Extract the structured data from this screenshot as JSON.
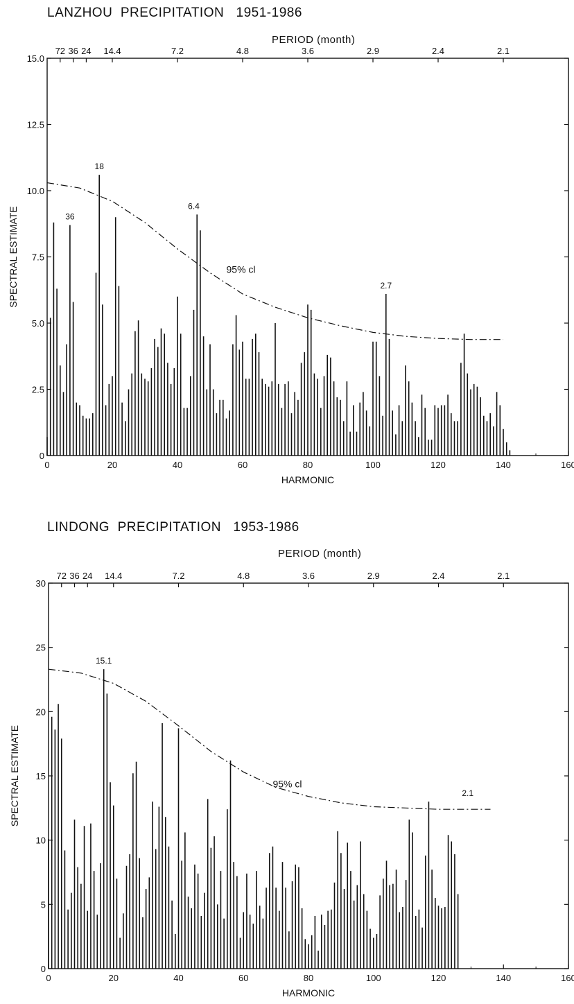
{
  "chart_data": [
    {
      "type": "bar",
      "title": "LANZHOU  PRECIPITATION   1951-1986",
      "xlabel": "HARMONIC",
      "ylabel": "SPECTRAL ESTIMATE",
      "top_axis_label": "PERIOD (month)",
      "xlim": [
        0,
        160
      ],
      "ylim": [
        0,
        15
      ],
      "x_ticks": [
        0,
        20,
        40,
        60,
        80,
        100,
        120,
        140,
        160
      ],
      "y_ticks": [
        0,
        2.5,
        5.0,
        7.5,
        10.0,
        12.5,
        15.0
      ],
      "y_tick_labels": [
        "0",
        "2.5",
        "5.0",
        "7.5",
        "10.0",
        "12.5",
        "15.0"
      ],
      "top_ticks": [
        {
          "label": "72",
          "harmonic": 2
        },
        {
          "label": "36",
          "harmonic": 4
        },
        {
          "label": "24",
          "harmonic": 6
        },
        {
          "label": "14.4",
          "harmonic": 10
        },
        {
          "label": "7.2",
          "harmonic": 20
        },
        {
          "label": "4.8",
          "harmonic": 30
        },
        {
          "label": "3.6",
          "harmonic": 40
        },
        {
          "label": "2.9",
          "harmonic": 50
        },
        {
          "label": "2.4",
          "harmonic": 60
        },
        {
          "label": "2.1",
          "harmonic": 70
        }
      ],
      "x": [
        0,
        1,
        2,
        3,
        4,
        5,
        6,
        7,
        8,
        9,
        10,
        11,
        12,
        13,
        14,
        15,
        16,
        17,
        18,
        19,
        20,
        21,
        22,
        23,
        24,
        25,
        26,
        27,
        28,
        29,
        30,
        31,
        32,
        33,
        34,
        35,
        36,
        37,
        38,
        39,
        40,
        41,
        42,
        43,
        44,
        45,
        46,
        47,
        48,
        49,
        50,
        51,
        52,
        53,
        54,
        55,
        56,
        57,
        58,
        59,
        60,
        61,
        62,
        63,
        64,
        65,
        66,
        67,
        68,
        69,
        70,
        71,
        72,
        73,
        74,
        75,
        76,
        77,
        78,
        79,
        80,
        81,
        82,
        83,
        84,
        85,
        86,
        87,
        88,
        89,
        90,
        91,
        92,
        93,
        94,
        95,
        96,
        97,
        98,
        99,
        100,
        101,
        102,
        103,
        104,
        105,
        106,
        107,
        108,
        109,
        110,
        111,
        112,
        113,
        114,
        115,
        116,
        117,
        118,
        119,
        120,
        121,
        122,
        123,
        124,
        125,
        126,
        127,
        128,
        129,
        130,
        131,
        132,
        133,
        134,
        135,
        136,
        137,
        138,
        139,
        140,
        141,
        142,
        143,
        144
      ],
      "values": [
        0.7,
        5.2,
        8.8,
        6.3,
        3.4,
        2.4,
        4.2,
        8.7,
        5.8,
        2.0,
        1.9,
        1.5,
        1.4,
        1.4,
        1.6,
        6.9,
        10.6,
        5.7,
        1.9,
        2.7,
        3.0,
        9.0,
        6.4,
        2.0,
        1.3,
        2.5,
        3.1,
        4.7,
        5.1,
        3.1,
        2.9,
        2.8,
        3.3,
        4.4,
        4.1,
        4.8,
        4.6,
        3.5,
        2.7,
        3.3,
        6.0,
        4.6,
        1.8,
        1.8,
        3.0,
        5.5,
        9.1,
        8.5,
        4.5,
        2.5,
        4.2,
        2.5,
        1.6,
        2.1,
        2.1,
        1.4,
        1.7,
        4.2,
        5.3,
        4.0,
        4.3,
        2.9,
        2.9,
        4.4,
        4.6,
        3.9,
        2.9,
        2.7,
        2.6,
        2.8,
        5.0,
        2.7,
        1.8,
        2.7,
        2.8,
        1.6,
        2.4,
        2.1,
        3.5,
        3.9,
        5.7,
        5.5,
        3.1,
        2.9,
        1.8,
        3.0,
        3.8,
        3.7,
        2.8,
        2.2,
        2.1,
        1.3,
        2.8,
        0.9,
        1.9,
        0.9,
        2.0,
        2.4,
        1.7,
        1.1,
        4.3,
        4.3,
        3.0,
        1.5,
        6.1,
        4.4,
        1.7,
        0.8,
        1.9,
        1.3,
        3.4,
        2.8,
        2.0,
        1.3,
        0.7,
        2.3,
        1.8,
        0.6,
        0.6,
        1.9,
        1.8,
        1.9,
        1.9,
        2.3,
        1.6,
        1.3,
        1.3,
        3.5,
        4.6,
        3.1,
        2.5,
        2.7,
        2.6,
        2.2,
        1.5,
        1.3,
        1.6,
        1.1,
        2.4,
        1.9,
        1.0,
        0.5,
        0.2,
        0,
        0
      ],
      "ci_label": "95% cl",
      "ci_curve": [
        [
          0,
          10.3
        ],
        [
          10,
          10.1
        ],
        [
          20,
          9.6
        ],
        [
          30,
          8.8
        ],
        [
          40,
          7.8
        ],
        [
          50,
          6.9
        ],
        [
          60,
          6.1
        ],
        [
          70,
          5.6
        ],
        [
          80,
          5.2
        ],
        [
          90,
          4.9
        ],
        [
          100,
          4.65
        ],
        [
          110,
          4.5
        ],
        [
          120,
          4.42
        ],
        [
          130,
          4.38
        ],
        [
          140,
          4.38
        ]
      ],
      "annotations": [
        {
          "text": "18",
          "x": 16,
          "y": 10.6
        },
        {
          "text": "36",
          "x": 7,
          "y": 8.7
        },
        {
          "text": "6.4",
          "x": 45,
          "y": 9.1
        },
        {
          "text": "2.7",
          "x": 104,
          "y": 6.1
        }
      ]
    },
    {
      "type": "bar",
      "title": "LINDONG  PRECIPITATION   1953-1986",
      "xlabel": "HARMONIC",
      "ylabel": "SPECTRAL ESTIMATE",
      "top_axis_label": "PERIOD (month)",
      "xlim": [
        0,
        160
      ],
      "ylim": [
        0,
        30
      ],
      "x_ticks": [
        0,
        20,
        40,
        60,
        80,
        100,
        120,
        140,
        160
      ],
      "y_ticks": [
        0,
        5,
        10,
        15,
        20,
        25,
        30
      ],
      "y_tick_labels": [
        "0",
        "5",
        "10",
        "15",
        "20",
        "25",
        "30"
      ],
      "top_ticks": [
        {
          "label": "72",
          "harmonic": 2
        },
        {
          "label": "36",
          "harmonic": 4
        },
        {
          "label": "24",
          "harmonic": 6
        },
        {
          "label": "14.4",
          "harmonic": 10
        },
        {
          "label": "7.2",
          "harmonic": 20
        },
        {
          "label": "4.8",
          "harmonic": 30
        },
        {
          "label": "3.6",
          "harmonic": 40
        },
        {
          "label": "2.9",
          "harmonic": 50
        },
        {
          "label": "2.4",
          "harmonic": 60
        },
        {
          "label": "2.1",
          "harmonic": 70
        }
      ],
      "x": [
        0,
        1,
        2,
        3,
        4,
        5,
        6,
        7,
        8,
        9,
        10,
        11,
        12,
        13,
        14,
        15,
        16,
        17,
        18,
        19,
        20,
        21,
        22,
        23,
        24,
        25,
        26,
        27,
        28,
        29,
        30,
        31,
        32,
        33,
        34,
        35,
        36,
        37,
        38,
        39,
        40,
        41,
        42,
        43,
        44,
        45,
        46,
        47,
        48,
        49,
        50,
        51,
        52,
        53,
        54,
        55,
        56,
        57,
        58,
        59,
        60,
        61,
        62,
        63,
        64,
        65,
        66,
        67,
        68,
        69,
        70,
        71,
        72,
        73,
        74,
        75,
        76,
        77,
        78,
        79,
        80,
        81,
        82,
        83,
        84,
        85,
        86,
        87,
        88,
        89,
        90,
        91,
        92,
        93,
        94,
        95,
        96,
        97,
        98,
        99,
        100,
        101,
        102,
        103,
        104,
        105,
        106,
        107,
        108,
        109,
        110,
        111,
        112,
        113,
        114,
        115,
        116,
        117,
        118,
        119,
        120,
        121,
        122,
        123,
        124,
        125,
        126,
        127,
        128,
        129,
        130,
        131,
        132,
        133,
        134,
        135,
        136
      ],
      "values": [
        10.1,
        19.6,
        18.6,
        20.6,
        17.9,
        9.2,
        4.6,
        5.9,
        11.6,
        7.9,
        6.6,
        11.1,
        4.5,
        11.3,
        7.6,
        4.2,
        8.2,
        23.3,
        21.4,
        14.5,
        12.7,
        7.0,
        2.4,
        4.3,
        8.0,
        8.9,
        15.2,
        16.1,
        8.6,
        4.0,
        6.2,
        7.1,
        13.0,
        9.3,
        12.6,
        19.1,
        11.8,
        9.5,
        5.3,
        2.7,
        18.7,
        8.4,
        10.6,
        5.6,
        4.7,
        8.1,
        7.4,
        4.1,
        5.9,
        13.2,
        9.4,
        10.3,
        5.0,
        7.6,
        3.9,
        12.4,
        16.2,
        8.3,
        7.2,
        2.4,
        4.4,
        7.4,
        4.2,
        3.5,
        7.6,
        4.9,
        3.9,
        6.3,
        9.0,
        9.5,
        6.3,
        4.5,
        8.3,
        6.3,
        2.9,
        6.8,
        8.1,
        7.9,
        4.7,
        2.3,
        1.9,
        2.6,
        4.1,
        1.4,
        4.2,
        3.4,
        4.5,
        4.6,
        6.7,
        10.7,
        9.0,
        6.2,
        9.8,
        7.6,
        5.3,
        6.5,
        9.9,
        5.8,
        4.5,
        3.1,
        2.4,
        2.7,
        5.7,
        7.0,
        8.4,
        6.5,
        6.6,
        7.7,
        4.4,
        4.8,
        6.9,
        11.6,
        10.6,
        4.1,
        4.6,
        3.2,
        8.8,
        13.0,
        7.7,
        5.5,
        4.9,
        4.7,
        4.8,
        10.4,
        9.9,
        8.9,
        5.8,
        0,
        0,
        0,
        0,
        0,
        0,
        0,
        0,
        0,
        0
      ],
      "ci_label": "95% cl",
      "ci_curve": [
        [
          0,
          23.3
        ],
        [
          10,
          23.0
        ],
        [
          20,
          22.2
        ],
        [
          30,
          20.8
        ],
        [
          40,
          18.9
        ],
        [
          50,
          16.9
        ],
        [
          60,
          15.3
        ],
        [
          70,
          14.1
        ],
        [
          80,
          13.4
        ],
        [
          90,
          12.9
        ],
        [
          100,
          12.6
        ],
        [
          110,
          12.5
        ],
        [
          120,
          12.4
        ],
        [
          136,
          12.4
        ]
      ],
      "annotations": [
        {
          "text": "15.1",
          "x": 17,
          "y": 23.3
        },
        {
          "text": "2.1",
          "x": 129,
          "y": 13.0
        }
      ]
    }
  ]
}
